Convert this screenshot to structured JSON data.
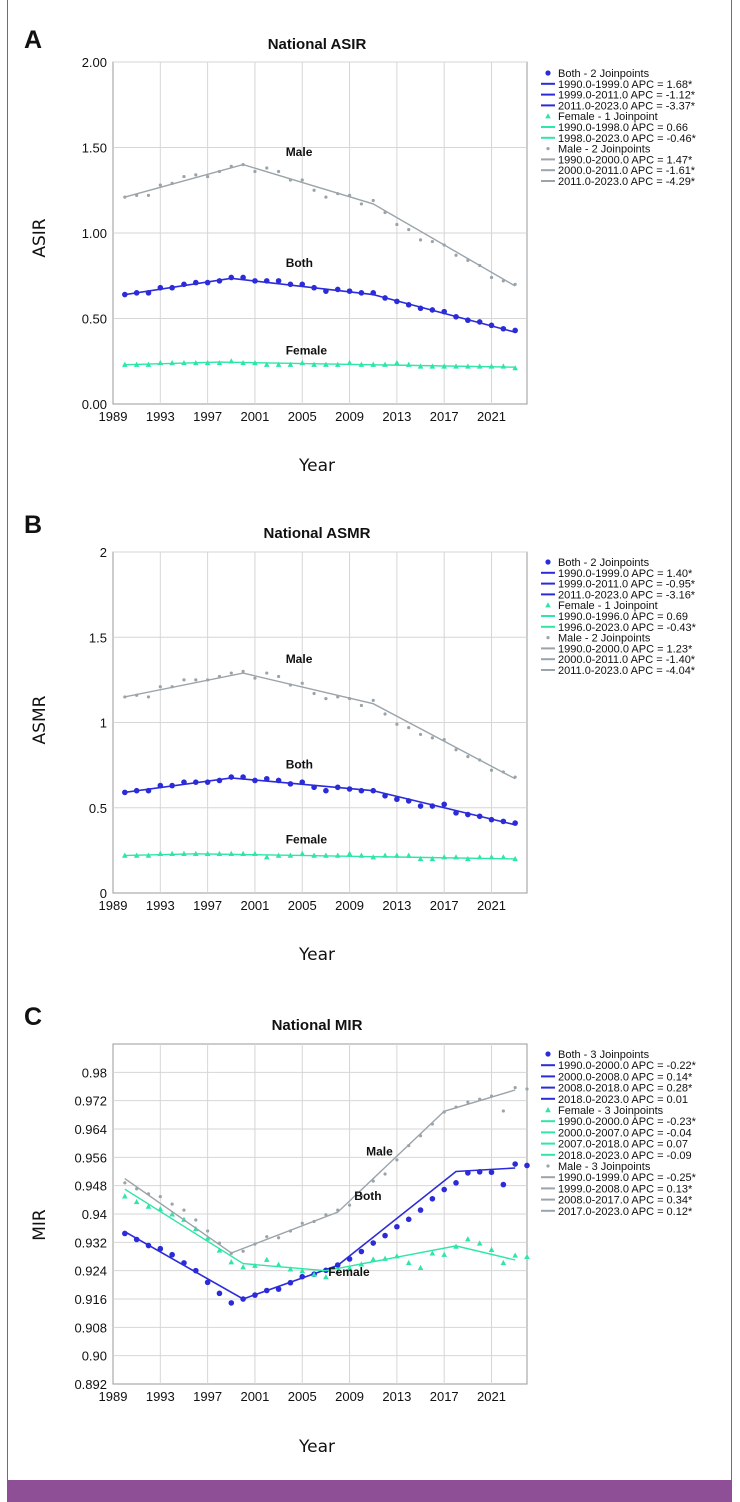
{
  "colors": {
    "both": "#2b2bd9",
    "female": "#2ee6a6",
    "male": "#9aa4aa",
    "frame": "#8a5a97",
    "grid": "#d6d6d6"
  },
  "chart_data": [
    {
      "panel": "A",
      "type": "line",
      "title": "National ASIR",
      "xlabel": "Year",
      "ylabel": "ASIR",
      "xlim": [
        1989,
        2024
      ],
      "ylim": [
        0,
        2
      ],
      "x_ticks": [
        1989,
        1993,
        1997,
        2001,
        2005,
        2009,
        2013,
        2017,
        2021
      ],
      "y_ticks": [
        0,
        0.5,
        1,
        1.5,
        2
      ],
      "y_tick_labels": [
        "0.00",
        "0.50",
        "1.00",
        "1.50",
        "2.00"
      ],
      "grid": true,
      "legend_position": "right",
      "series_labels": [
        {
          "text": "Male",
          "x": 2003.6,
          "y": 1.45
        },
        {
          "text": "Both",
          "x": 2003.6,
          "y": 0.8
        },
        {
          "text": "Female",
          "x": 2003.6,
          "y": 0.29
        }
      ],
      "series": [
        {
          "name": "Both",
          "key": "both",
          "marker": "dot",
          "points": [
            0.64,
            0.65,
            0.65,
            0.68,
            0.68,
            0.7,
            0.71,
            0.71,
            0.72,
            0.74,
            0.74,
            0.72,
            0.72,
            0.72,
            0.7,
            0.7,
            0.68,
            0.66,
            0.67,
            0.66,
            0.65,
            0.65,
            0.62,
            0.6,
            0.58,
            0.56,
            0.55,
            0.54,
            0.51,
            0.49,
            0.48,
            0.46,
            0.44,
            0.43
          ],
          "joinpoint_fit": [
            [
              1990,
              0.64
            ],
            [
              1999,
              0.735
            ],
            [
              2011,
              0.64
            ],
            [
              2023,
              0.42
            ]
          ]
        },
        {
          "name": "Female",
          "key": "female",
          "marker": "triangle",
          "points": [
            0.23,
            0.23,
            0.23,
            0.24,
            0.24,
            0.24,
            0.24,
            0.24,
            0.24,
            0.25,
            0.24,
            0.24,
            0.23,
            0.23,
            0.23,
            0.24,
            0.23,
            0.23,
            0.23,
            0.24,
            0.23,
            0.23,
            0.23,
            0.24,
            0.23,
            0.22,
            0.22,
            0.22,
            0.22,
            0.22,
            0.22,
            0.22,
            0.22,
            0.21
          ],
          "joinpoint_fit": [
            [
              1990,
              0.23
            ],
            [
              1998,
              0.245
            ],
            [
              2023,
              0.215
            ]
          ]
        },
        {
          "name": "Male",
          "key": "male",
          "marker": "small-dot",
          "points": [
            1.21,
            1.22,
            1.22,
            1.28,
            1.29,
            1.33,
            1.34,
            1.33,
            1.36,
            1.39,
            1.4,
            1.36,
            1.38,
            1.36,
            1.31,
            1.31,
            1.25,
            1.21,
            1.23,
            1.22,
            1.17,
            1.19,
            1.12,
            1.05,
            1.02,
            0.96,
            0.95,
            0.93,
            0.87,
            0.84,
            0.81,
            0.74,
            0.72,
            0.7
          ],
          "joinpoint_fit": [
            [
              1990,
              1.21
            ],
            [
              2000,
              1.4
            ],
            [
              2011,
              1.17
            ],
            [
              2023,
              0.69
            ]
          ]
        }
      ],
      "legend": [
        {
          "marker": "dot",
          "key": "both",
          "text": "Both - 2 Joinpoints"
        },
        {
          "marker": "line",
          "key": "both",
          "text": "1990.0-1999.0 APC = 1.68*"
        },
        {
          "marker": "line",
          "key": "both",
          "text": "1999.0-2011.0 APC = -1.12*"
        },
        {
          "marker": "line",
          "key": "both",
          "text": "2011.0-2023.0 APC = -3.37*"
        },
        {
          "marker": "triangle",
          "key": "female",
          "text": "Female - 1 Joinpoint"
        },
        {
          "marker": "line",
          "key": "female",
          "text": "1990.0-1998.0 APC = 0.66"
        },
        {
          "marker": "line",
          "key": "female",
          "text": "1998.0-2023.0 APC = -0.46*"
        },
        {
          "marker": "small-dot",
          "key": "male",
          "text": "Male - 2 Joinpoints"
        },
        {
          "marker": "line",
          "key": "male",
          "text": "1990.0-2000.0 APC = 1.47*"
        },
        {
          "marker": "line",
          "key": "male",
          "text": "2000.0-2011.0 APC = -1.61*"
        },
        {
          "marker": "line",
          "key": "male",
          "text": "2011.0-2023.0 APC = -4.29*"
        }
      ]
    },
    {
      "panel": "B",
      "type": "line",
      "title": "National ASMR",
      "xlabel": "Year",
      "ylabel": "ASMR",
      "xlim": [
        1989,
        2024
      ],
      "ylim": [
        0,
        2
      ],
      "x_ticks": [
        1989,
        1993,
        1997,
        2001,
        2005,
        2009,
        2013,
        2017,
        2021
      ],
      "y_ticks": [
        0,
        0.5,
        1,
        1.5,
        2
      ],
      "y_tick_labels": [
        "0",
        "0.5",
        "1",
        "1.5",
        "2"
      ],
      "grid": true,
      "legend_position": "right",
      "series_labels": [
        {
          "text": "Male",
          "x": 2003.6,
          "y": 1.35
        },
        {
          "text": "Both",
          "x": 2003.6,
          "y": 0.73
        },
        {
          "text": "Female",
          "x": 2003.6,
          "y": 0.29
        }
      ],
      "series": [
        {
          "name": "Both",
          "key": "both",
          "marker": "dot",
          "points": [
            0.59,
            0.6,
            0.6,
            0.63,
            0.63,
            0.65,
            0.65,
            0.65,
            0.66,
            0.68,
            0.68,
            0.66,
            0.67,
            0.66,
            0.64,
            0.65,
            0.62,
            0.6,
            0.62,
            0.61,
            0.6,
            0.6,
            0.57,
            0.55,
            0.54,
            0.51,
            0.51,
            0.52,
            0.47,
            0.46,
            0.45,
            0.43,
            0.42,
            0.41
          ],
          "joinpoint_fit": [
            [
              1990,
              0.59
            ],
            [
              1999,
              0.675
            ],
            [
              2011,
              0.6
            ],
            [
              2023,
              0.4
            ]
          ]
        },
        {
          "name": "Female",
          "key": "female",
          "marker": "triangle",
          "points": [
            0.22,
            0.22,
            0.22,
            0.23,
            0.23,
            0.23,
            0.23,
            0.23,
            0.23,
            0.23,
            0.23,
            0.23,
            0.21,
            0.22,
            0.22,
            0.23,
            0.22,
            0.22,
            0.22,
            0.23,
            0.22,
            0.21,
            0.22,
            0.22,
            0.22,
            0.2,
            0.2,
            0.21,
            0.21,
            0.2,
            0.21,
            0.21,
            0.21,
            0.2
          ],
          "joinpoint_fit": [
            [
              1990,
              0.22
            ],
            [
              1996,
              0.23
            ],
            [
              2023,
              0.2
            ]
          ]
        },
        {
          "name": "Male",
          "key": "male",
          "marker": "small-dot",
          "points": [
            1.15,
            1.16,
            1.15,
            1.21,
            1.21,
            1.25,
            1.25,
            1.25,
            1.27,
            1.29,
            1.3,
            1.26,
            1.29,
            1.27,
            1.22,
            1.23,
            1.17,
            1.14,
            1.15,
            1.14,
            1.1,
            1.13,
            1.05,
            0.99,
            0.97,
            0.93,
            0.91,
            0.9,
            0.84,
            0.8,
            0.78,
            0.72,
            0.71,
            0.68
          ],
          "joinpoint_fit": [
            [
              1990,
              1.15
            ],
            [
              2000,
              1.29
            ],
            [
              2011,
              1.11
            ],
            [
              2023,
              0.67
            ]
          ]
        }
      ],
      "legend": [
        {
          "marker": "dot",
          "key": "both",
          "text": "Both - 2 Joinpoints"
        },
        {
          "marker": "line",
          "key": "both",
          "text": "1990.0-1999.0 APC = 1.40*"
        },
        {
          "marker": "line",
          "key": "both",
          "text": "1999.0-2011.0 APC = -0.95*"
        },
        {
          "marker": "line",
          "key": "both",
          "text": "2011.0-2023.0 APC = -3.16*"
        },
        {
          "marker": "triangle",
          "key": "female",
          "text": "Female - 1 Joinpoint"
        },
        {
          "marker": "line",
          "key": "female",
          "text": "1990.0-1996.0 APC = 0.69"
        },
        {
          "marker": "line",
          "key": "female",
          "text": "1996.0-2023.0 APC = -0.43*"
        },
        {
          "marker": "small-dot",
          "key": "male",
          "text": "Male - 2 Joinpoints"
        },
        {
          "marker": "line",
          "key": "male",
          "text": "1990.0-2000.0 APC = 1.23*"
        },
        {
          "marker": "line",
          "key": "male",
          "text": "2000.0-2011.0 APC = -1.40*"
        },
        {
          "marker": "line",
          "key": "male",
          "text": "2011.0-2023.0 APC = -4.04*"
        }
      ]
    },
    {
      "panel": "C",
      "type": "line",
      "title": "National MIR",
      "xlabel": "Year",
      "ylabel": "MIR",
      "xlim": [
        1989,
        2024
      ],
      "ylim": [
        0.892,
        0.988
      ],
      "x_ticks": [
        1989,
        1993,
        1997,
        2001,
        2005,
        2009,
        2013,
        2017,
        2021
      ],
      "y_ticks": [
        0.892,
        0.9,
        0.908,
        0.916,
        0.924,
        0.932,
        0.94,
        0.948,
        0.956,
        0.964,
        0.972,
        0.98
      ],
      "y_tick_labels": [
        "0.892",
        "0.90",
        "0.908",
        "0.916",
        "0.924",
        "0.932",
        "0.94",
        "0.948",
        "0.956",
        "0.964",
        "0.972",
        "0.98"
      ],
      "grid": true,
      "legend_position": "right",
      "series_labels": [
        {
          "text": "Male",
          "x": 2010.4,
          "y": 0.9565
        },
        {
          "text": "Both",
          "x": 2009.4,
          "y": 0.944
        },
        {
          "text": "Female",
          "x": 2007.2,
          "y": 0.9225
        }
      ],
      "series": [
        {
          "name": "Both",
          "key": "both",
          "marker": "dot",
          "points": [
            0.9345,
            0.9328,
            0.9311,
            0.9302,
            0.9285,
            0.9262,
            0.924,
            0.9207,
            0.9176,
            0.9149,
            0.916,
            0.9171,
            0.9184,
            0.9188,
            0.9206,
            0.9223,
            0.923,
            0.9241,
            0.9256,
            0.9273,
            0.9294,
            0.9318,
            0.9339,
            0.9364,
            0.9385,
            0.9411,
            0.9443,
            0.9469,
            0.9488,
            0.9516,
            0.9519,
            0.9518,
            0.9483,
            0.9541,
            0.9537
          ],
          "joinpoint_fit": [
            [
              1990,
              0.935
            ],
            [
              2000,
              0.916
            ],
            [
              2008,
              0.9255
            ],
            [
              2018,
              0.952
            ],
            [
              2023,
              0.953
            ]
          ]
        },
        {
          "name": "Female",
          "key": "female",
          "marker": "triangle",
          "points": [
            0.945,
            0.9434,
            0.9421,
            0.9414,
            0.9399,
            0.9384,
            0.9358,
            0.9331,
            0.9297,
            0.9264,
            0.925,
            0.9254,
            0.9271,
            0.9257,
            0.9244,
            0.9239,
            0.9229,
            0.9222,
            0.9237,
            0.9247,
            0.9258,
            0.9272,
            0.9274,
            0.9281,
            0.9262,
            0.9248,
            0.9289,
            0.9285,
            0.9308,
            0.9329,
            0.9317,
            0.9299,
            0.9262,
            0.9283,
            0.9279
          ],
          "joinpoint_fit": [
            [
              1990,
              0.947
            ],
            [
              2000,
              0.926
            ],
            [
              2007,
              0.924
            ],
            [
              2018,
              0.931
            ],
            [
              2023,
              0.927
            ]
          ]
        },
        {
          "name": "Male",
          "key": "male",
          "marker": "small-dot",
          "points": [
            0.9488,
            0.9471,
            0.9457,
            0.9449,
            0.9428,
            0.9411,
            0.9383,
            0.9352,
            0.9318,
            0.9289,
            0.9295,
            0.9315,
            0.9336,
            0.9333,
            0.9352,
            0.9374,
            0.9379,
            0.9398,
            0.9411,
            0.9425,
            0.9452,
            0.9493,
            0.9513,
            0.9553,
            0.9593,
            0.9621,
            0.9654,
            0.9688,
            0.9702,
            0.9716,
            0.9724,
            0.9733,
            0.9691,
            0.9757,
            0.9753
          ],
          "joinpoint_fit": [
            [
              1990,
              0.95
            ],
            [
              1999,
              0.929
            ],
            [
              2008,
              0.9405
            ],
            [
              2017,
              0.969
            ],
            [
              2023,
              0.975
            ]
          ]
        }
      ],
      "legend": [
        {
          "marker": "dot",
          "key": "both",
          "text": "Both - 3 Joinpoints"
        },
        {
          "marker": "line",
          "key": "both",
          "text": "1990.0-2000.0 APC = -0.22*"
        },
        {
          "marker": "line",
          "key": "both",
          "text": "2000.0-2008.0 APC = 0.14*"
        },
        {
          "marker": "line",
          "key": "both",
          "text": "2008.0-2018.0 APC = 0.28*"
        },
        {
          "marker": "line",
          "key": "both",
          "text": "2018.0-2023.0 APC = 0.01"
        },
        {
          "marker": "triangle",
          "key": "female",
          "text": "Female - 3 Joinpoints"
        },
        {
          "marker": "line",
          "key": "female",
          "text": "1990.0-2000.0 APC = -0.23*"
        },
        {
          "marker": "line",
          "key": "female",
          "text": "2000.0-2007.0 APC = -0.04"
        },
        {
          "marker": "line",
          "key": "female",
          "text": "2007.0-2018.0 APC = 0.07"
        },
        {
          "marker": "line",
          "key": "female",
          "text": "2018.0-2023.0 APC = -0.09"
        },
        {
          "marker": "small-dot",
          "key": "male",
          "text": "Male - 3 Joinpoints"
        },
        {
          "marker": "line",
          "key": "male",
          "text": "1990.0-1999.0 APC = -0.25*"
        },
        {
          "marker": "line",
          "key": "male",
          "text": "1999.0-2008.0 APC = 0.13*"
        },
        {
          "marker": "line",
          "key": "male",
          "text": "2008.0-2017.0 APC = 0.34*"
        },
        {
          "marker": "line",
          "key": "male",
          "text": "2017.0-2023.0 APC = 0.12*"
        }
      ]
    }
  ]
}
